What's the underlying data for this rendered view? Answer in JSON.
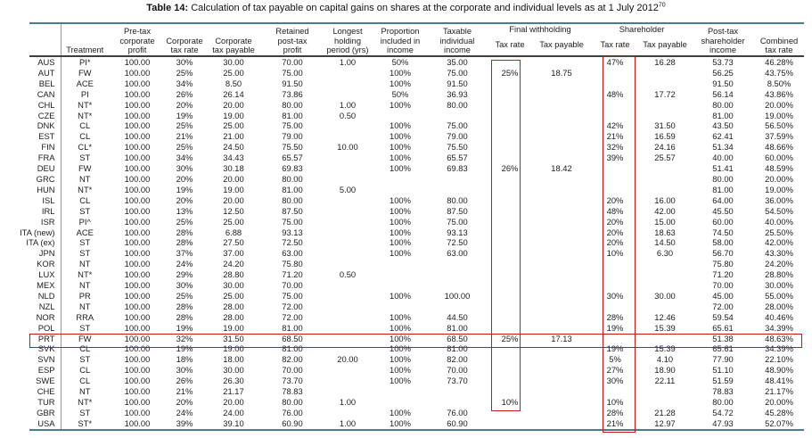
{
  "title": {
    "prefix": "Table 14:",
    "main": " Calculation of tax payable on capital gains on shares at the corporate and individual levels as at 1 July 2012",
    "footnote_ref": "70"
  },
  "table": {
    "headers": [
      "",
      "Treatment",
      "Pre-tax\ncorporate\nprofit",
      "Corporate\ntax rate",
      "Corporate\ntax payable",
      "Retained\npost-tax\nprofit",
      "Longest\nholding\nperiod (yrs)",
      "Proportion\nincluded in\nincome",
      "Taxable\nindividual\nincome"
    ],
    "groups": [
      {
        "label": "Final withholding",
        "children": [
          "Tax rate",
          "Tax payable"
        ]
      },
      {
        "label": "Shareholder",
        "children": [
          "Tax rate",
          "Tax payable"
        ]
      }
    ],
    "tail": [
      "Post-tax\nshareholder\nincome",
      "Combined\ntax rate"
    ],
    "rows": [
      [
        "AUS",
        "PI*",
        "100.00",
        "30%",
        "30.00",
        "70.00",
        "1.00",
        "50%",
        "35.00",
        "",
        "",
        "47%",
        "16.28",
        "53.73",
        "46.28%"
      ],
      [
        "AUT",
        "FW",
        "100.00",
        "25%",
        "25.00",
        "75.00",
        "",
        "100%",
        "75.00",
        "25%",
        "18.75",
        "",
        "",
        "56.25",
        "43.75%"
      ],
      [
        "BEL",
        "ACE",
        "100.00",
        "34%",
        "8.50",
        "91.50",
        "",
        "100%",
        "91.50",
        "",
        "",
        "",
        "",
        "91.50",
        "8.50%"
      ],
      [
        "CAN",
        "PI",
        "100.00",
        "26%",
        "26.14",
        "73.86",
        "",
        "50%",
        "36.93",
        "",
        "",
        "48%",
        "17.72",
        "56.14",
        "43.86%"
      ],
      [
        "CHL",
        "NT*",
        "100.00",
        "20%",
        "20.00",
        "80.00",
        "1.00",
        "100%",
        "80.00",
        "",
        "",
        "",
        "",
        "80.00",
        "20.00%"
      ],
      [
        "CZE",
        "NT*",
        "100.00",
        "19%",
        "19.00",
        "81.00",
        "0.50",
        "",
        "",
        "",
        "",
        "",
        "",
        "81.00",
        "19.00%"
      ],
      [
        "DNK",
        "CL",
        "100.00",
        "25%",
        "25.00",
        "75.00",
        "",
        "100%",
        "75.00",
        "",
        "",
        "42%",
        "31.50",
        "43.50",
        "56.50%"
      ],
      [
        "EST",
        "CL",
        "100.00",
        "21%",
        "21.00",
        "79.00",
        "",
        "100%",
        "79.00",
        "",
        "",
        "21%",
        "16.59",
        "62.41",
        "37.59%"
      ],
      [
        "FIN",
        "CL*",
        "100.00",
        "25%",
        "24.50",
        "75.50",
        "10.00",
        "100%",
        "75.50",
        "",
        "",
        "32%",
        "24.16",
        "51.34",
        "48.66%"
      ],
      [
        "FRA",
        "ST",
        "100.00",
        "34%",
        "34.43",
        "65.57",
        "",
        "100%",
        "65.57",
        "",
        "",
        "39%",
        "25.57",
        "40.00",
        "60.00%"
      ],
      [
        "DEU",
        "FW",
        "100.00",
        "30%",
        "30.18",
        "69.83",
        "",
        "100%",
        "69.83",
        "26%",
        "18.42",
        "",
        "",
        "51.41",
        "48.59%"
      ],
      [
        "GRC",
        "NT",
        "100.00",
        "20%",
        "20.00",
        "80.00",
        "",
        "",
        "",
        "",
        "",
        "",
        "",
        "80.00",
        "20.00%"
      ],
      [
        "HUN",
        "NT*",
        "100.00",
        "19%",
        "19.00",
        "81.00",
        "5.00",
        "",
        "",
        "",
        "",
        "",
        "",
        "81.00",
        "19.00%"
      ],
      [
        "ISL",
        "CL",
        "100.00",
        "20%",
        "20.00",
        "80.00",
        "",
        "100%",
        "80.00",
        "",
        "",
        "20%",
        "16.00",
        "64.00",
        "36.00%"
      ],
      [
        "IRL",
        "ST",
        "100.00",
        "13%",
        "12.50",
        "87.50",
        "",
        "100%",
        "87.50",
        "",
        "",
        "48%",
        "42.00",
        "45.50",
        "54.50%"
      ],
      [
        "ISR",
        "PI^",
        "100.00",
        "25%",
        "25.00",
        "75.00",
        "",
        "100%",
        "75.00",
        "",
        "",
        "20%",
        "15.00",
        "60.00",
        "40.00%"
      ],
      [
        "ITA (new)",
        "ACE",
        "100.00",
        "28%",
        "6.88",
        "93.13",
        "",
        "100%",
        "93.13",
        "",
        "",
        "20%",
        "18.63",
        "74.50",
        "25.50%"
      ],
      [
        "ITA (ex)",
        "ST",
        "100.00",
        "28%",
        "27.50",
        "72.50",
        "",
        "100%",
        "72.50",
        "",
        "",
        "20%",
        "14.50",
        "58.00",
        "42.00%"
      ],
      [
        "JPN",
        "ST",
        "100.00",
        "37%",
        "37.00",
        "63.00",
        "",
        "100%",
        "63.00",
        "",
        "",
        "10%",
        "6.30",
        "56.70",
        "43.30%"
      ],
      [
        "KOR",
        "NT",
        "100.00",
        "24%",
        "24.20",
        "75.80",
        "",
        "",
        "",
        "",
        "",
        "",
        "",
        "75.80",
        "24.20%"
      ],
      [
        "LUX",
        "NT*",
        "100.00",
        "29%",
        "28.80",
        "71.20",
        "0.50",
        "",
        "",
        "",
        "",
        "",
        "",
        "71.20",
        "28.80%"
      ],
      [
        "MEX",
        "NT",
        "100.00",
        "30%",
        "30.00",
        "70.00",
        "",
        "",
        "",
        "",
        "",
        "",
        "",
        "70.00",
        "30.00%"
      ],
      [
        "NLD",
        "PR",
        "100.00",
        "25%",
        "25.00",
        "75.00",
        "",
        "100%",
        "100.00",
        "",
        "",
        "30%",
        "30.00",
        "45.00",
        "55.00%"
      ],
      [
        "NZL",
        "NT",
        "100.00",
        "28%",
        "28.00",
        "72.00",
        "",
        "",
        "",
        "",
        "",
        "",
        "",
        "72.00",
        "28.00%"
      ],
      [
        "NOR",
        "RRA",
        "100.00",
        "28%",
        "28.00",
        "72.00",
        "",
        "100%",
        "44.50",
        "",
        "",
        "28%",
        "12.46",
        "59.54",
        "40.46%"
      ],
      [
        "POL",
        "ST",
        "100.00",
        "19%",
        "19.00",
        "81.00",
        "",
        "100%",
        "81.00",
        "",
        "",
        "19%",
        "15.39",
        "65.61",
        "34.39%"
      ],
      [
        "PRT",
        "FW",
        "100.00",
        "32%",
        "31.50",
        "68.50",
        "",
        "100%",
        "68.50",
        "25%",
        "17.13",
        "",
        "",
        "51.38",
        "48.63%"
      ],
      [
        "SVK",
        "CL",
        "100.00",
        "19%",
        "19.00",
        "81.00",
        "",
        "100%",
        "81.00",
        "",
        "",
        "19%",
        "15.39",
        "65.61",
        "34.39%"
      ],
      [
        "SVN",
        "ST",
        "100.00",
        "18%",
        "18.00",
        "82.00",
        "20.00",
        "100%",
        "82.00",
        "",
        "",
        "5%",
        "4.10",
        "77.90",
        "22.10%"
      ],
      [
        "ESP",
        "CL",
        "100.00",
        "30%",
        "30.00",
        "70.00",
        "",
        "100%",
        "70.00",
        "",
        "",
        "27%",
        "18.90",
        "51.10",
        "48.90%"
      ],
      [
        "SWE",
        "CL",
        "100.00",
        "26%",
        "26.30",
        "73.70",
        "",
        "100%",
        "73.70",
        "",
        "",
        "30%",
        "22.11",
        "51.59",
        "48.41%"
      ],
      [
        "CHE",
        "NT",
        "100.00",
        "21%",
        "21.17",
        "78.83",
        "",
        "",
        "",
        "",
        "",
        "",
        "",
        "78.83",
        "21.17%"
      ],
      [
        "TUR",
        "NT*",
        "100.00",
        "20%",
        "20.00",
        "80.00",
        "1.00",
        "",
        "",
        "10%",
        "",
        "10%",
        "",
        "80.00",
        "20.00%"
      ],
      [
        "GBR",
        "ST",
        "100.00",
        "24%",
        "24.00",
        "76.00",
        "",
        "100%",
        "76.00",
        "",
        "",
        "28%",
        "21.28",
        "54.72",
        "45.28%"
      ],
      [
        "USA",
        "ST*",
        "100.00",
        "39%",
        "39.10",
        "60.90",
        "1.00",
        "100%",
        "60.90",
        "",
        "",
        "21%",
        "12.97",
        "47.93",
        "52.07%"
      ]
    ]
  },
  "annotations": {
    "highlight_color": "#cc1616",
    "highlights": [
      {
        "name": "final-withholding-tax-rate-column"
      },
      {
        "name": "shareholder-tax-rate-column"
      },
      {
        "name": "prt-row"
      }
    ]
  }
}
